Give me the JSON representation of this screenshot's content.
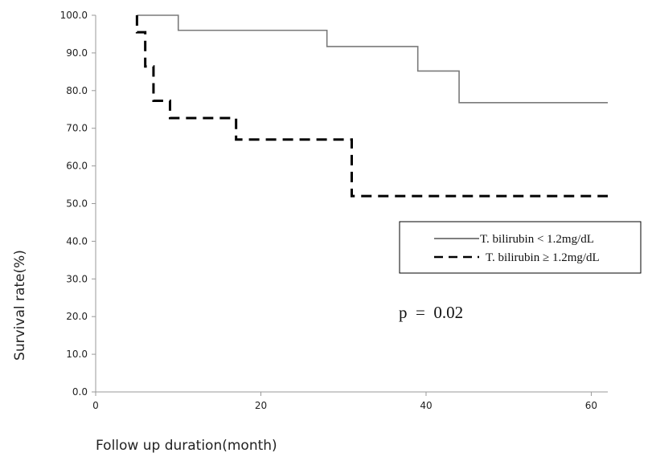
{
  "chart_data": {
    "type": "line",
    "xlabel": "Follow up duration(month)",
    "ylabel": "Survival rate(%)",
    "xlim": [
      0,
      62
    ],
    "ylim": [
      0,
      100
    ],
    "x_ticks": [
      "0",
      "20",
      "40",
      "60"
    ],
    "x_tick_values": [
      0,
      20,
      40,
      60
    ],
    "y_ticks": [
      "0.0",
      "10.0",
      "20.0",
      "30.0",
      "40.0",
      "50.0",
      "60.0",
      "70.0",
      "80.0",
      "90.0",
      "100.0"
    ],
    "y_tick_values": [
      0,
      10,
      20,
      30,
      40,
      50,
      60,
      70,
      80,
      90,
      100
    ],
    "grid": false,
    "legend_position": "right",
    "annotation": "p  =  0.02",
    "series": [
      {
        "name": "T. bilirubin < 1.2mg/dL",
        "style": "solid",
        "color": "#7a7a7a",
        "steps": [
          [
            5,
            100
          ],
          [
            10,
            96
          ],
          [
            28,
            91.7
          ],
          [
            39,
            85.2
          ],
          [
            44,
            76.8
          ],
          [
            62,
            76.8
          ]
        ]
      },
      {
        "name": "T. bilirubin ≥ 1.2mg/dL",
        "style": "dashed",
        "color": "#000000",
        "steps": [
          [
            5,
            100
          ],
          [
            5,
            95.5
          ],
          [
            6,
            86.4
          ],
          [
            7,
            77.3
          ],
          [
            9,
            72.7
          ],
          [
            17,
            67.0
          ],
          [
            31,
            52.0
          ],
          [
            62,
            52.0
          ]
        ]
      }
    ]
  }
}
